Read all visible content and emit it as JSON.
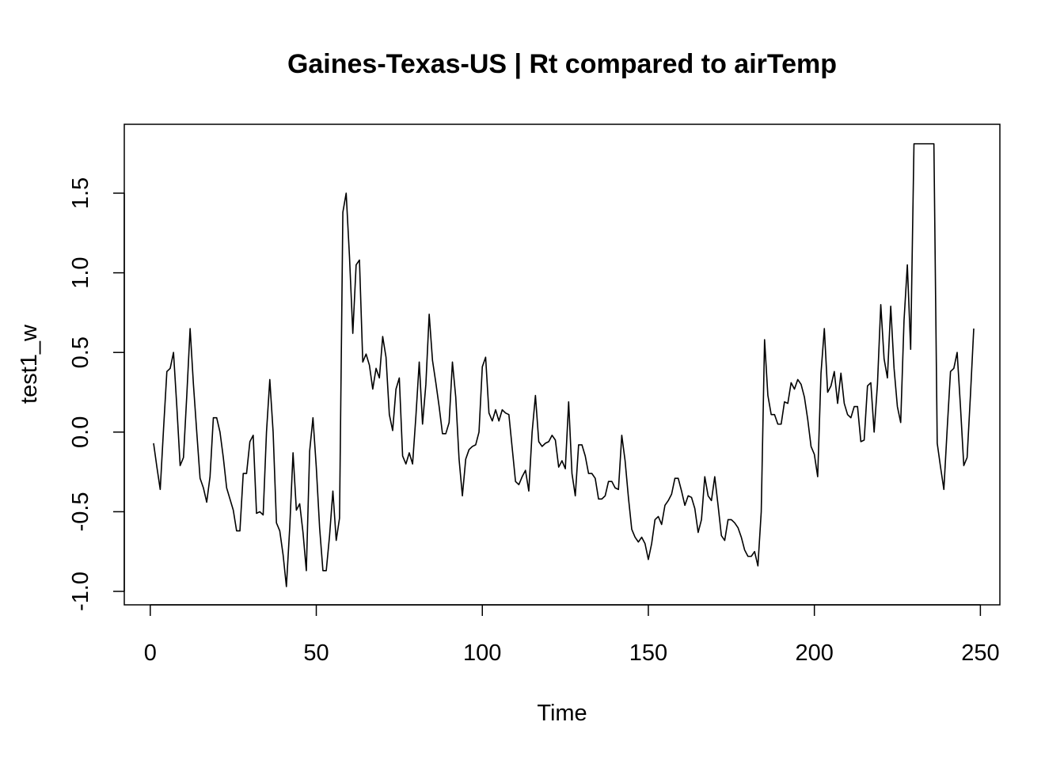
{
  "chart_data": {
    "type": "line",
    "title": "Gaines-Texas-US | Rt compared to airTemp",
    "xlabel": "Time",
    "ylabel": "test1_w",
    "xlim": [
      1,
      248
    ],
    "ylim": [
      -1.0,
      1.8
    ],
    "xticks": [
      0,
      50,
      100,
      150,
      200,
      250
    ],
    "xtick_labels": [
      "0",
      "50",
      "100",
      "150",
      "200",
      "250"
    ],
    "yticks": [
      -1.0,
      -0.5,
      0.0,
      0.5,
      1.0,
      1.5
    ],
    "ytick_labels": [
      "-1.0",
      "-0.5",
      "0.0",
      "0.5",
      "1.0",
      "1.5"
    ],
    "grid": false,
    "legend": "none",
    "series": [
      {
        "color": "#000000",
        "x_start": 1,
        "values": [
          -0.07,
          -0.22,
          -0.36,
          0.02,
          0.38,
          0.4,
          0.5,
          0.16,
          -0.21,
          -0.16,
          0.23,
          0.65,
          0.3,
          0.0,
          -0.29,
          -0.35,
          -0.44,
          -0.28,
          0.09,
          0.09,
          0.0,
          -0.16,
          -0.35,
          -0.42,
          -0.49,
          -0.62,
          -0.62,
          -0.26,
          -0.26,
          -0.06,
          -0.02,
          -0.51,
          -0.5,
          -0.52,
          0.0,
          0.33,
          0.0,
          -0.57,
          -0.62,
          -0.77,
          -0.97,
          -0.6,
          -0.13,
          -0.49,
          -0.45,
          -0.63,
          -0.87,
          -0.12,
          0.09,
          -0.22,
          -0.6,
          -0.87,
          -0.87,
          -0.65,
          -0.37,
          -0.68,
          -0.54,
          1.38,
          1.5,
          1.1,
          0.62,
          1.05,
          1.08,
          0.44,
          0.49,
          0.42,
          0.27,
          0.4,
          0.34,
          0.6,
          0.47,
          0.11,
          0.01,
          0.27,
          0.34,
          -0.15,
          -0.2,
          -0.13,
          -0.2,
          0.1,
          0.44,
          0.05,
          0.3,
          0.74,
          0.45,
          0.31,
          0.16,
          -0.01,
          -0.01,
          0.06,
          0.44,
          0.22,
          -0.17,
          -0.4,
          -0.17,
          -0.11,
          -0.09,
          -0.08,
          0.0,
          0.41,
          0.47,
          0.12,
          0.07,
          0.14,
          0.07,
          0.14,
          0.12,
          0.11,
          -0.1,
          -0.31,
          -0.33,
          -0.28,
          -0.24,
          -0.37,
          0.0,
          0.23,
          -0.06,
          -0.09,
          -0.07,
          -0.06,
          -0.02,
          -0.05,
          -0.22,
          -0.18,
          -0.23,
          0.19,
          -0.26,
          -0.4,
          -0.08,
          -0.08,
          -0.15,
          -0.26,
          -0.26,
          -0.29,
          -0.42,
          -0.42,
          -0.4,
          -0.31,
          -0.31,
          -0.35,
          -0.36,
          -0.02,
          -0.18,
          -0.41,
          -0.61,
          -0.66,
          -0.69,
          -0.66,
          -0.7,
          -0.8,
          -0.7,
          -0.55,
          -0.53,
          -0.58,
          -0.46,
          -0.43,
          -0.39,
          -0.29,
          -0.29,
          -0.37,
          -0.46,
          -0.4,
          -0.41,
          -0.48,
          -0.63,
          -0.55,
          -0.28,
          -0.4,
          -0.43,
          -0.28,
          -0.46,
          -0.65,
          -0.68,
          -0.55,
          -0.55,
          -0.57,
          -0.6,
          -0.66,
          -0.74,
          -0.78,
          -0.78,
          -0.75,
          -0.84,
          -0.5,
          0.58,
          0.23,
          0.11,
          0.11,
          0.05,
          0.05,
          0.19,
          0.18,
          0.31,
          0.27,
          0.33,
          0.3,
          0.22,
          0.08,
          -0.09,
          -0.14,
          -0.28,
          0.37,
          0.65,
          0.25,
          0.29,
          0.38,
          0.18,
          0.37,
          0.18,
          0.11,
          0.09,
          0.16,
          0.16,
          -0.06,
          -0.05,
          0.29,
          0.31,
          0.0,
          0.3,
          0.8,
          0.46,
          0.34,
          0.79,
          0.4,
          0.16,
          0.06,
          0.7,
          1.05,
          0.52,
          1.81,
          1.81,
          1.81,
          1.81,
          1.81,
          1.81,
          1.81,
          -0.07,
          -0.22,
          -0.36,
          0.02,
          0.38,
          0.4,
          0.5,
          0.16,
          -0.21,
          -0.16,
          0.23,
          0.65
        ]
      }
    ]
  }
}
